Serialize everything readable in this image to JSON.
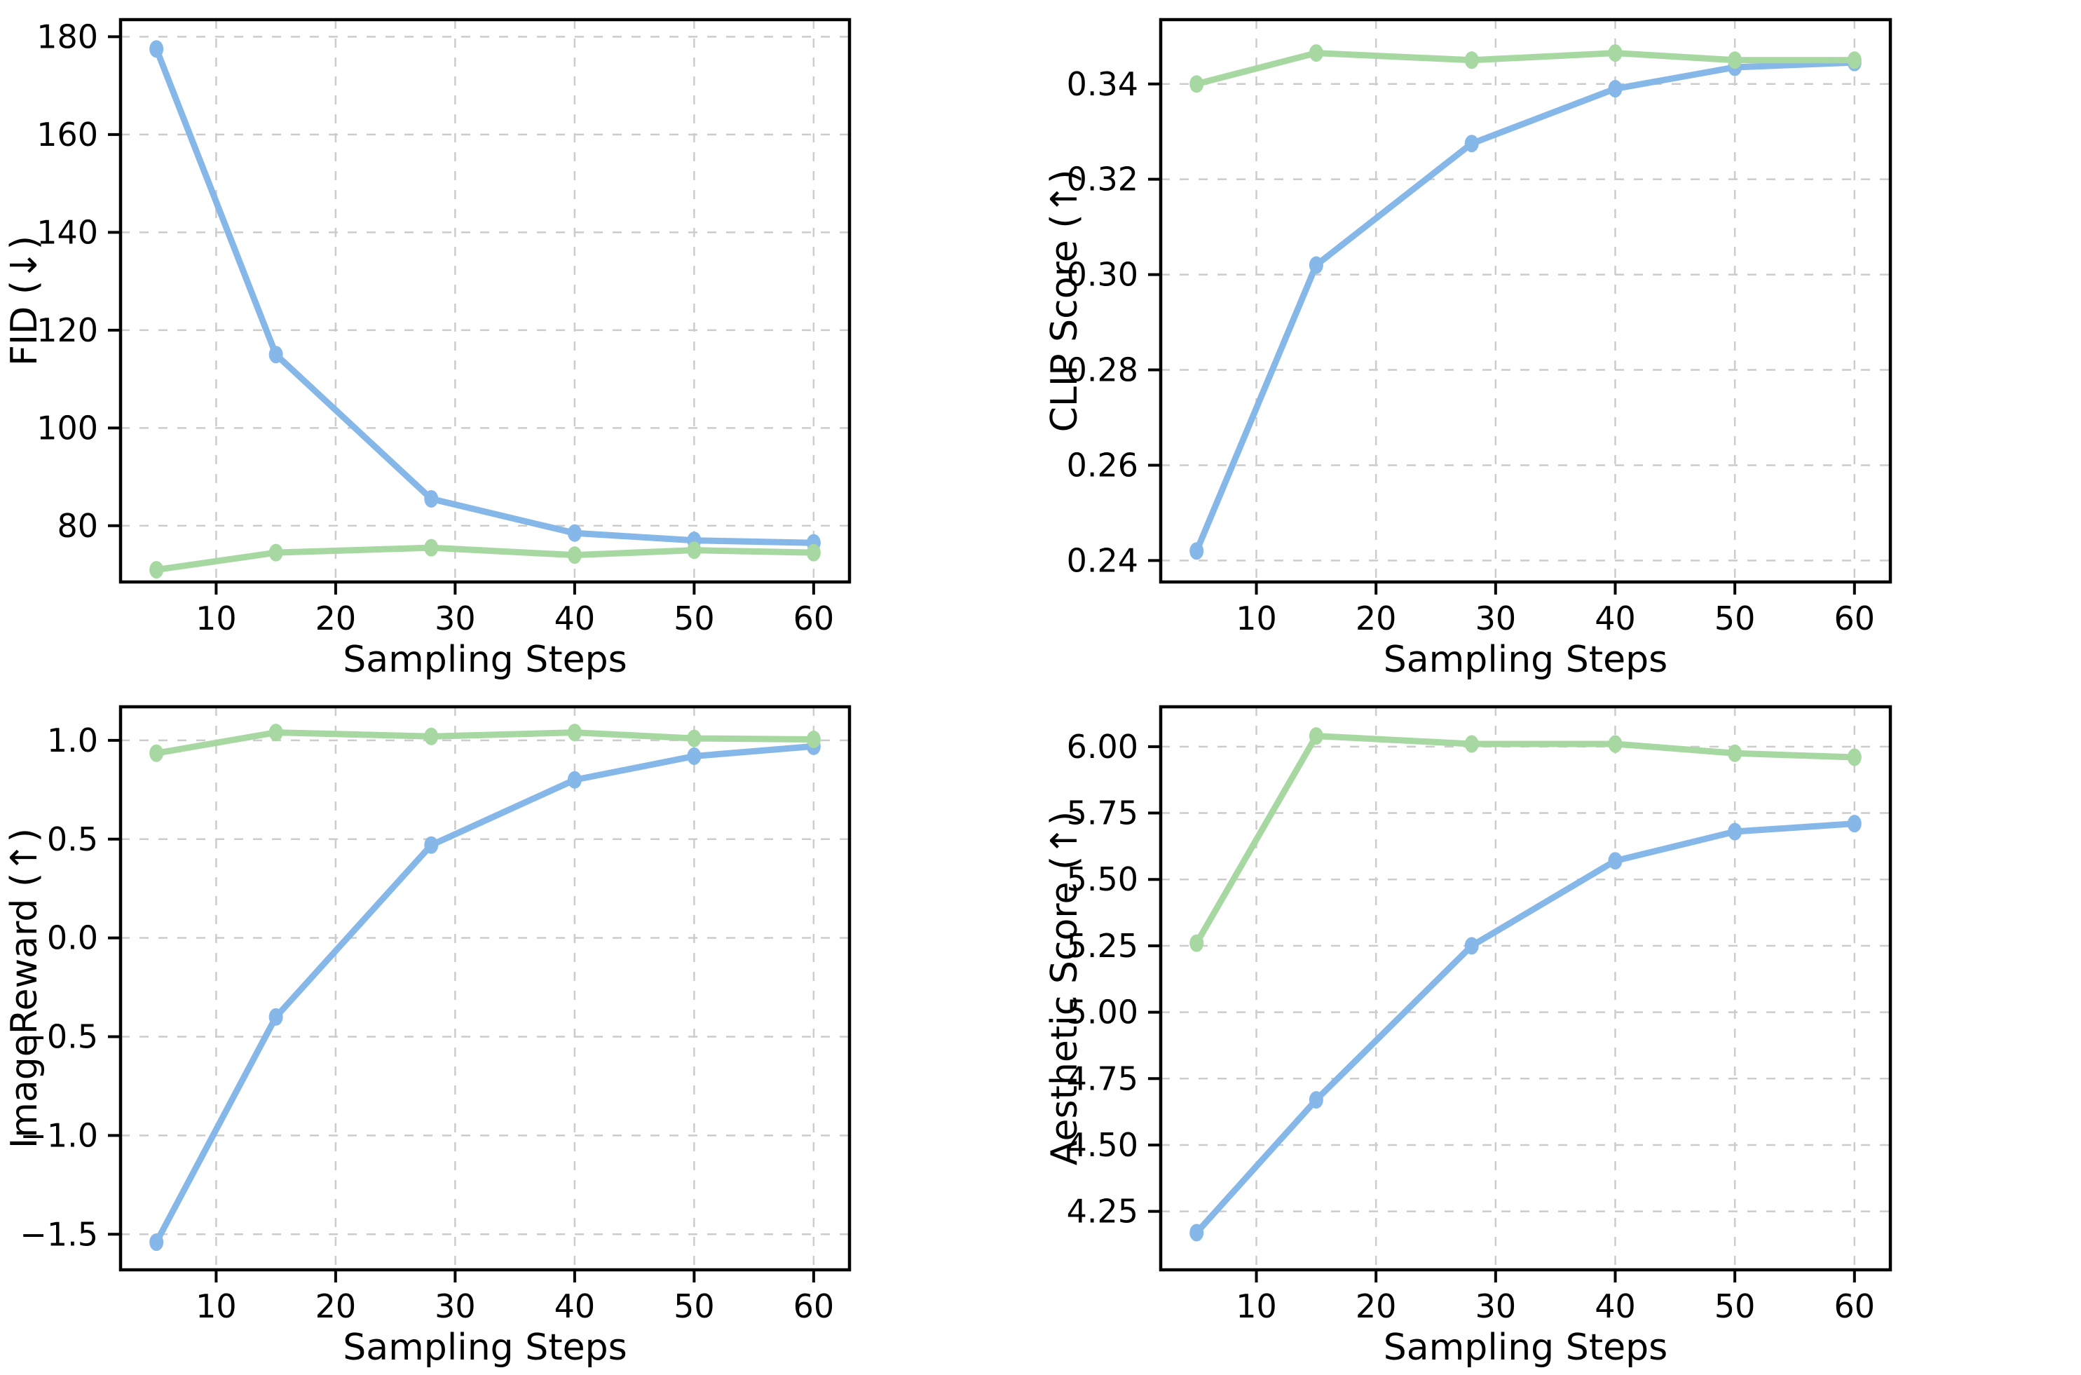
{
  "figure": {
    "background": "#ffffff",
    "grid_color": "#cccccc",
    "spine_color": "#000000",
    "blue_color": "#85b7e8",
    "green_color": "#a7d8a2",
    "xlabel": "Sampling Steps"
  },
  "chart_data": [
    {
      "type": "line",
      "name": "fid",
      "xlabel": "Sampling Steps",
      "ylabel": "FID (↓)",
      "x": [
        5,
        15,
        28,
        40,
        50,
        60
      ],
      "series": [
        {
          "name": "blue",
          "color": "#85b7e8",
          "values": [
            177.5,
            115,
            85.5,
            78.5,
            77,
            76.5
          ]
        },
        {
          "name": "green",
          "color": "#a7d8a2",
          "values": [
            71,
            74.5,
            75.5,
            74,
            75,
            74.5
          ]
        }
      ],
      "xlim": [
        2,
        63
      ],
      "ylim": [
        68.5,
        183.5
      ],
      "xticks": [
        10,
        20,
        30,
        40,
        50,
        60
      ],
      "yticks": [
        80,
        100,
        120,
        140,
        160,
        180
      ],
      "ytick_decimals": 0,
      "grid": true,
      "legend": "none"
    },
    {
      "type": "line",
      "name": "clip-score",
      "xlabel": "Sampling Steps",
      "ylabel": "CLIP Score (↑)",
      "x": [
        5,
        15,
        28,
        40,
        50,
        60
      ],
      "series": [
        {
          "name": "blue",
          "color": "#85b7e8",
          "values": [
            0.242,
            0.302,
            0.3275,
            0.339,
            0.3435,
            0.3445
          ]
        },
        {
          "name": "green",
          "color": "#a7d8a2",
          "values": [
            0.34,
            0.3465,
            0.345,
            0.3465,
            0.345,
            0.345
          ]
        }
      ],
      "xlim": [
        2,
        63
      ],
      "ylim": [
        0.2355,
        0.3535
      ],
      "xticks": [
        10,
        20,
        30,
        40,
        50,
        60
      ],
      "yticks": [
        0.24,
        0.26,
        0.28,
        0.3,
        0.32,
        0.34
      ],
      "ytick_decimals": 2,
      "grid": true,
      "legend": "none"
    },
    {
      "type": "line",
      "name": "image-reward",
      "xlabel": "Sampling Steps",
      "ylabel": "ImageReward (↑)",
      "x": [
        5,
        15,
        28,
        40,
        50,
        60
      ],
      "series": [
        {
          "name": "blue",
          "color": "#85b7e8",
          "values": [
            -1.54,
            -0.4,
            0.47,
            0.8,
            0.92,
            0.97
          ]
        },
        {
          "name": "green",
          "color": "#a7d8a2",
          "values": [
            0.935,
            1.04,
            1.02,
            1.04,
            1.01,
            1.005
          ]
        }
      ],
      "xlim": [
        2,
        63
      ],
      "ylim": [
        -1.68,
        1.17
      ],
      "xticks": [
        10,
        20,
        30,
        40,
        50,
        60
      ],
      "yticks": [
        -1.5,
        -1.0,
        -0.5,
        0.0,
        0.5,
        1.0
      ],
      "ytick_decimals": 1,
      "grid": true,
      "legend": "none"
    },
    {
      "type": "line",
      "name": "aesthetic-score",
      "xlabel": "Sampling Steps",
      "ylabel": "Aesthetic Score (↑)",
      "x": [
        5,
        15,
        28,
        40,
        50,
        60
      ],
      "series": [
        {
          "name": "blue",
          "color": "#85b7e8",
          "values": [
            4.17,
            4.67,
            5.25,
            5.57,
            5.68,
            5.71
          ]
        },
        {
          "name": "green",
          "color": "#a7d8a2",
          "values": [
            5.26,
            6.04,
            6.01,
            6.01,
            5.975,
            5.96
          ]
        }
      ],
      "xlim": [
        2,
        63
      ],
      "ylim": [
        4.03,
        6.15
      ],
      "xticks": [
        10,
        20,
        30,
        40,
        50,
        60
      ],
      "yticks": [
        4.25,
        4.5,
        4.75,
        5.0,
        5.25,
        5.5,
        5.75,
        6.0
      ],
      "ytick_decimals": 2,
      "grid": true,
      "legend": "none"
    }
  ]
}
